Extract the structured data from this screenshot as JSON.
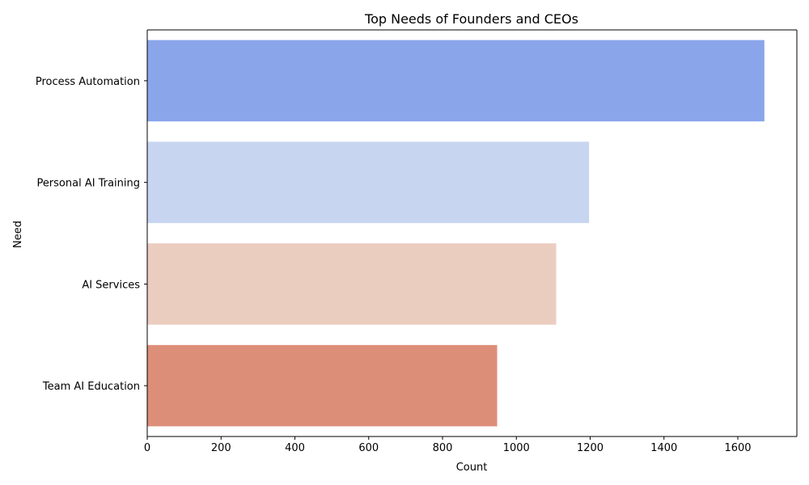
{
  "chart_data": {
    "type": "bar",
    "orientation": "horizontal",
    "title": "Top Needs of Founders and CEOs",
    "xlabel": "Count",
    "ylabel": "Need",
    "categories": [
      "Process Automation",
      "Personal AI Training",
      "AI Services",
      "Team AI Education"
    ],
    "values": [
      1672,
      1197,
      1108,
      948
    ],
    "colors": [
      "#8aa5ea",
      "#c7d5f0",
      "#ebcdbf",
      "#dd8e79"
    ],
    "xlim": [
      0,
      1760
    ],
    "xticks": [
      0,
      200,
      400,
      600,
      800,
      1000,
      1200,
      1400,
      1600
    ],
    "grid": false,
    "legend": "none"
  }
}
